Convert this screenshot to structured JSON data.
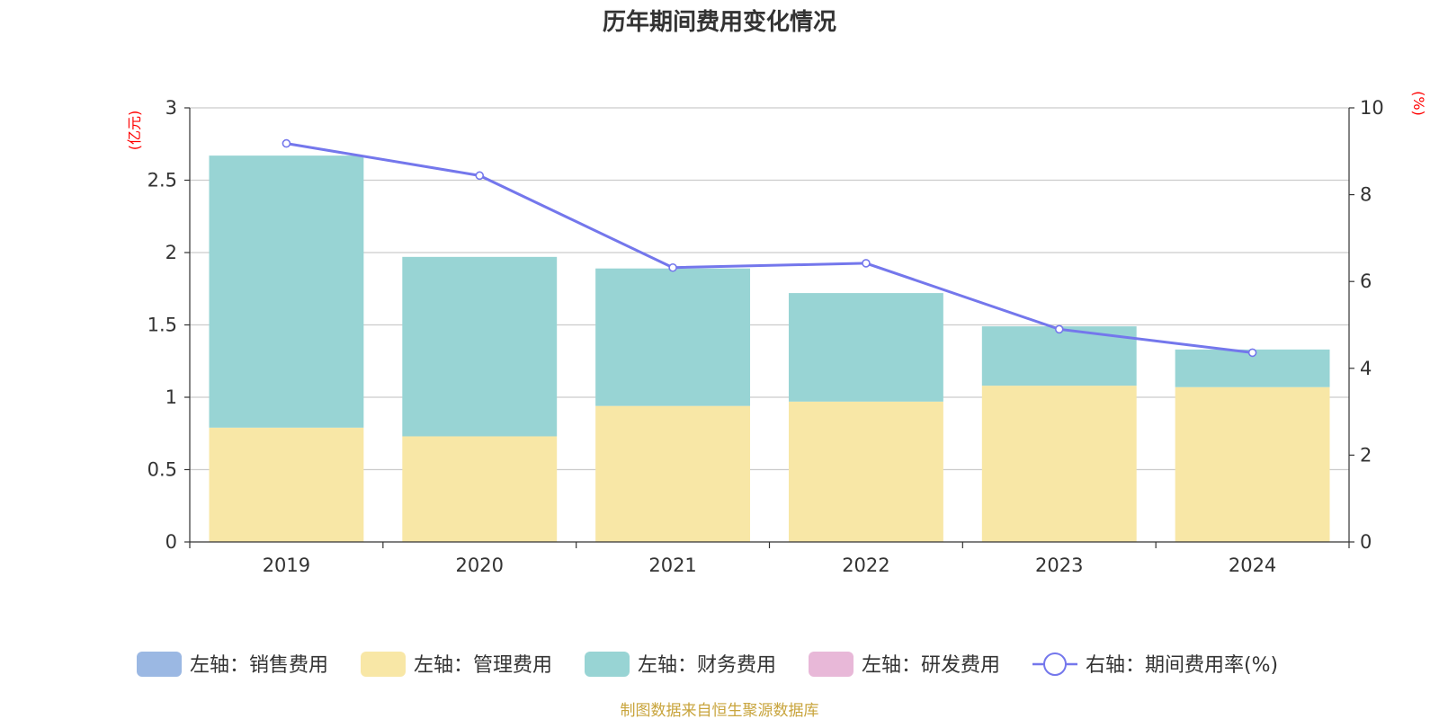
{
  "chart_data": {
    "type": "bar",
    "stacked": true,
    "title": "历年期间费用变化情况",
    "categories": [
      "2019",
      "2020",
      "2021",
      "2022",
      "2023",
      "2024"
    ],
    "left_axis": {
      "unit": "(亿元)",
      "ylim": [
        0,
        3
      ],
      "ticks": [
        "0",
        "0.5",
        "1",
        "1.5",
        "2",
        "2.5",
        "3"
      ]
    },
    "right_axis": {
      "unit": "(%)",
      "ylim": [
        0,
        10
      ],
      "ticks": [
        "0",
        "2",
        "4",
        "6",
        "8",
        "10"
      ]
    },
    "grid": true,
    "legend_position": "bottom",
    "series": [
      {
        "name": "左轴：销售费用",
        "axis": "left",
        "type": "bar",
        "color": "#9bb8e3",
        "values": [
          0,
          0,
          0,
          0,
          0,
          0
        ]
      },
      {
        "name": "左轴：管理费用",
        "axis": "left",
        "type": "bar",
        "color": "#f8e7a6",
        "values": [
          0.79,
          0.73,
          0.94,
          0.97,
          1.08,
          1.07
        ]
      },
      {
        "name": "左轴：财务费用",
        "axis": "left",
        "type": "bar",
        "color": "#98d4d4",
        "values": [
          1.88,
          1.24,
          0.95,
          0.75,
          0.41,
          0.26
        ]
      },
      {
        "name": "左轴：研发费用",
        "axis": "left",
        "type": "bar",
        "color": "#e8b8d8",
        "values": [
          0,
          0,
          0,
          0,
          0,
          0
        ]
      },
      {
        "name": "右轴：期间费用率(%)",
        "axis": "right",
        "type": "line",
        "color": "#7477ec",
        "values": [
          9.18,
          8.44,
          6.32,
          6.42,
          4.9,
          4.36
        ]
      }
    ],
    "source_note": "制图数据来自恒生聚源数据库"
  }
}
